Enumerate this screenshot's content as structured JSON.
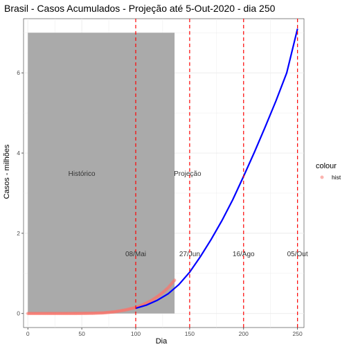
{
  "chart_data": {
    "type": "line",
    "title": "Brasil - Casos Acumulados - Projeção até 5-Out-2020 - dia 250",
    "xlabel": "Dia",
    "ylabel": "Casos - milhões",
    "xlim": [
      -4,
      256
    ],
    "ylim": [
      -0.35,
      7.35
    ],
    "x_ticks": [
      0,
      50,
      100,
      150,
      200,
      250
    ],
    "y_ticks": [
      0,
      2,
      4,
      6
    ],
    "grid": true,
    "shaded_region": {
      "x": [
        0,
        136
      ],
      "y": [
        0,
        7
      ],
      "color": "#aaaaaa"
    },
    "region_labels": [
      {
        "text": "Histórico",
        "x": 50,
        "y": 3.5
      },
      {
        "text": "Projeção",
        "x": 150,
        "y": 3.5
      }
    ],
    "vlines": [
      {
        "x": 100,
        "label": "08/Mai"
      },
      {
        "x": 150,
        "label": "27/Jun"
      },
      {
        "x": 200,
        "label": "16/Ago"
      },
      {
        "x": 250,
        "label": "05/Out"
      }
    ],
    "vline_label_y": 1.5,
    "vline_color": "#ff0000",
    "series": [
      {
        "type": "points",
        "color": "#f8766d",
        "x": [
          0,
          10,
          20,
          30,
          40,
          50,
          60,
          70,
          80,
          90,
          100,
          105,
          110,
          115,
          120,
          125,
          130,
          136
        ],
        "y": [
          0,
          0,
          0,
          0,
          0,
          0.002,
          0.005,
          0.015,
          0.04,
          0.085,
          0.15,
          0.2,
          0.26,
          0.33,
          0.42,
          0.52,
          0.64,
          0.83
        ]
      },
      {
        "type": "line",
        "color": "#0000ff",
        "x": [
          100,
          110,
          120,
          130,
          140,
          150,
          160,
          170,
          180,
          190,
          200,
          210,
          220,
          230,
          240,
          250
        ],
        "y": [
          0.13,
          0.21,
          0.33,
          0.49,
          0.72,
          1.03,
          1.42,
          1.85,
          2.32,
          2.84,
          3.42,
          4.02,
          4.65,
          5.3,
          6.0,
          7.1
        ]
      }
    ],
    "legend": {
      "title": "colour",
      "entries": [
        {
          "label": "hist",
          "color": "#f8766d"
        }
      ],
      "position": "right"
    }
  }
}
